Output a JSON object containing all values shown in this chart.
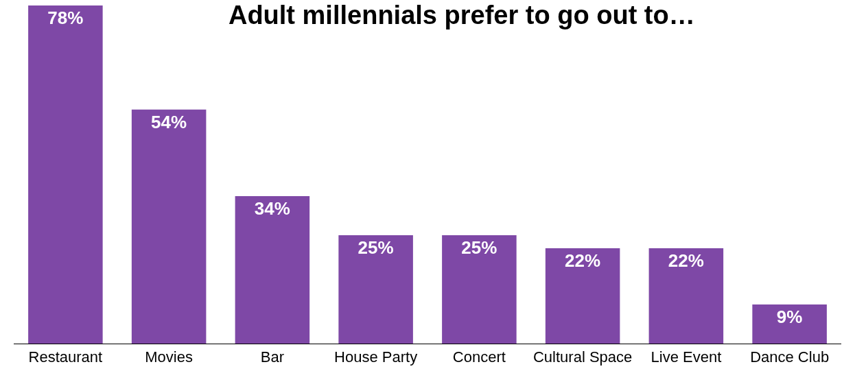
{
  "chart_data": {
    "type": "bar",
    "title": "Adult millennials prefer to go out to…",
    "categories": [
      "Restaurant",
      "Movies",
      "Bar",
      "House Party",
      "Concert",
      "Cultural Space",
      "Live Event",
      "Dance Club"
    ],
    "values": [
      78,
      54,
      34,
      25,
      25,
      22,
      22,
      9
    ],
    "value_labels": [
      "78%",
      "54%",
      "34%",
      "25%",
      "25%",
      "22%",
      "22%",
      "9%"
    ],
    "color": "#7e48a6"
  }
}
